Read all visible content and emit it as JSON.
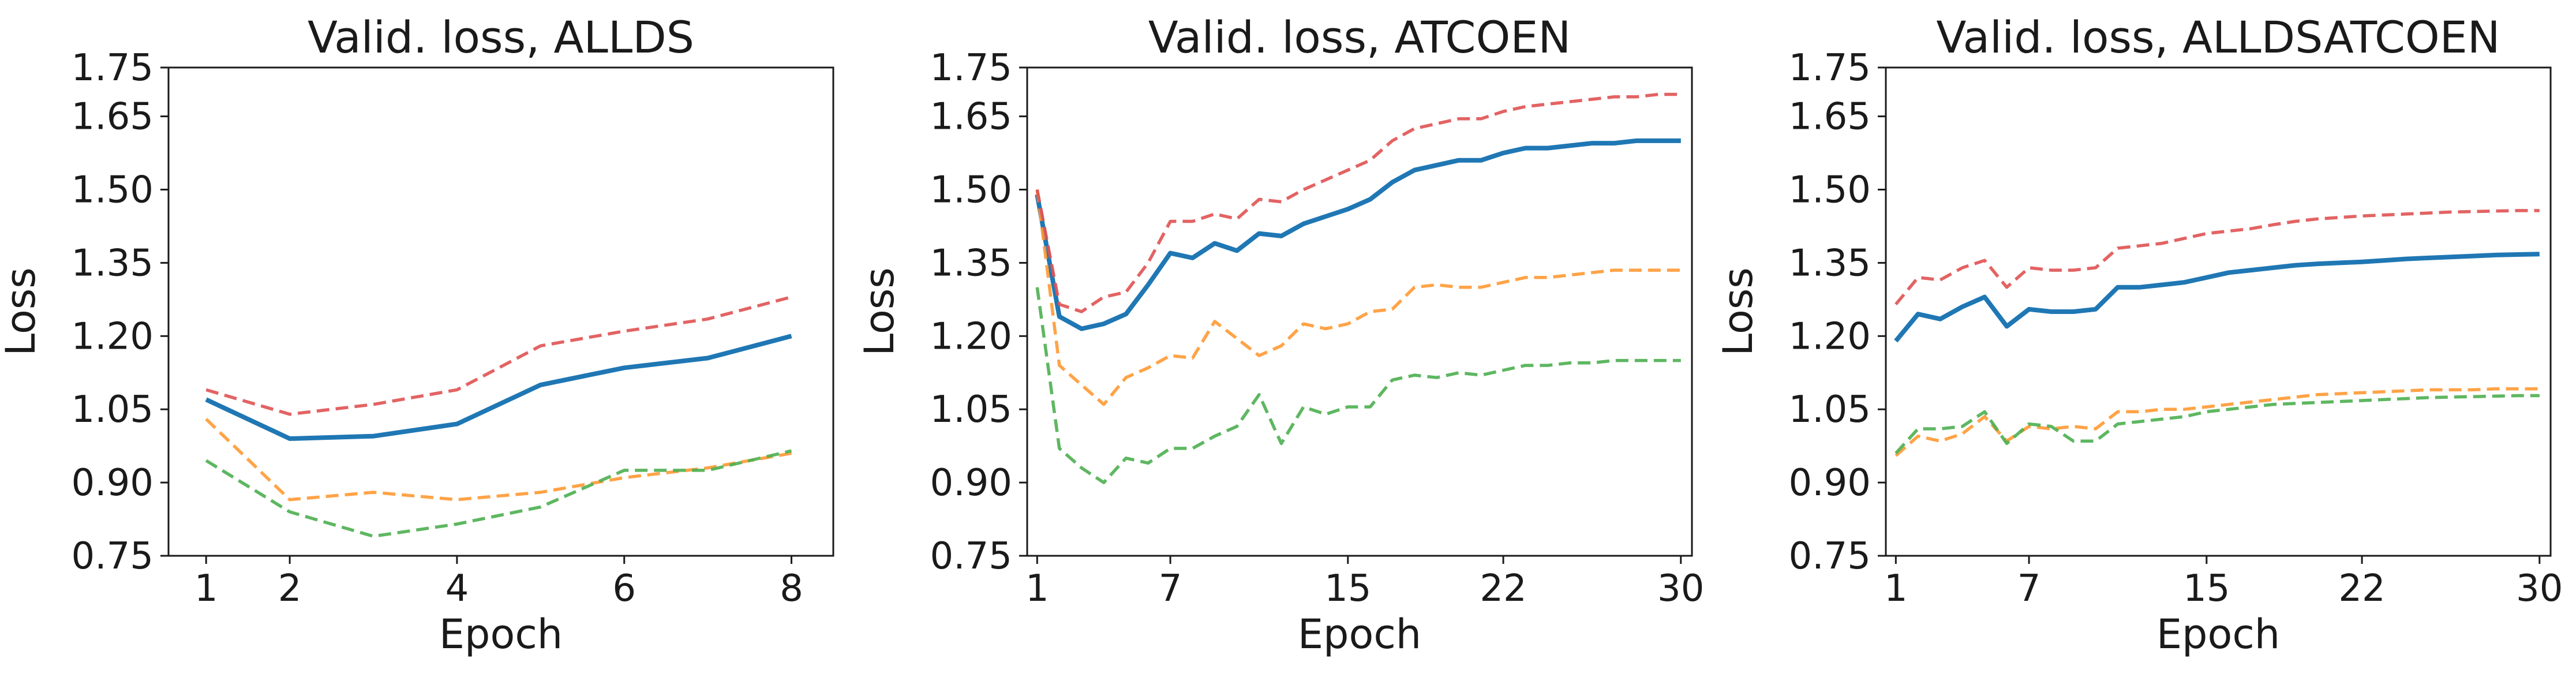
{
  "colors": {
    "blue": "#1f77b4",
    "orange": "#ff9933",
    "green": "#4caf50",
    "red": "#e05252"
  },
  "chart_data": [
    {
      "type": "line",
      "title": "Valid. loss, ALLDS",
      "xlabel": "Epoch",
      "ylabel": "Loss",
      "xlim": [
        0.55,
        8.5
      ],
      "ylim": [
        0.75,
        1.75
      ],
      "xticks": [
        1,
        2,
        4,
        6,
        8
      ],
      "yticks": [
        0.75,
        0.9,
        1.05,
        1.2,
        1.35,
        1.5,
        1.65,
        1.75
      ],
      "ytick_labels": [
        "0.75",
        "0.90",
        "1.05",
        "1.20",
        "1.35",
        "1.50",
        "1.65",
        "1.75"
      ],
      "grid": false,
      "x": [
        1,
        2,
        3,
        4,
        5,
        6,
        7,
        8
      ],
      "series": [
        {
          "color": "blue",
          "style": "solid",
          "values": [
            1.07,
            0.99,
            0.995,
            1.02,
            1.1,
            1.135,
            1.155,
            1.2
          ]
        },
        {
          "color": "orange",
          "style": "dashed",
          "values": [
            1.03,
            0.865,
            0.88,
            0.865,
            0.88,
            0.91,
            0.93,
            0.96
          ]
        },
        {
          "color": "green",
          "style": "dashed",
          "values": [
            0.945,
            0.84,
            0.79,
            0.815,
            0.85,
            0.925,
            0.925,
            0.965
          ]
        },
        {
          "color": "red",
          "style": "dashed",
          "values": [
            1.09,
            1.04,
            1.06,
            1.09,
            1.18,
            1.21,
            1.235,
            1.28
          ]
        }
      ]
    },
    {
      "type": "line",
      "title": "Valid. loss, ATCOEN",
      "xlabel": "Epoch",
      "ylabel": "Loss",
      "xlim": [
        0.55,
        30.5
      ],
      "ylim": [
        0.75,
        1.75
      ],
      "xticks": [
        1,
        7,
        15,
        22,
        30
      ],
      "yticks": [
        0.75,
        0.9,
        1.05,
        1.2,
        1.35,
        1.5,
        1.65,
        1.75
      ],
      "ytick_labels": [
        "0.75",
        "0.90",
        "1.05",
        "1.20",
        "1.35",
        "1.50",
        "1.65",
        "1.75"
      ],
      "grid": false,
      "x": [
        1,
        2,
        3,
        4,
        5,
        6,
        7,
        8,
        9,
        10,
        11,
        12,
        13,
        14,
        15,
        16,
        17,
        18,
        19,
        20,
        21,
        22,
        23,
        24,
        25,
        26,
        27,
        28,
        29,
        30
      ],
      "series": [
        {
          "color": "blue",
          "style": "solid",
          "values": [
            1.49,
            1.24,
            1.215,
            1.225,
            1.245,
            1.305,
            1.37,
            1.36,
            1.39,
            1.375,
            1.41,
            1.405,
            1.43,
            1.445,
            1.46,
            1.48,
            1.515,
            1.54,
            1.55,
            1.56,
            1.56,
            1.575,
            1.585,
            1.585,
            1.59,
            1.595,
            1.595,
            1.6,
            1.6,
            1.6
          ]
        },
        {
          "color": "orange",
          "style": "dashed",
          "values": [
            1.5,
            1.14,
            1.1,
            1.06,
            1.115,
            1.135,
            1.16,
            1.155,
            1.23,
            1.195,
            1.16,
            1.18,
            1.225,
            1.215,
            1.225,
            1.25,
            1.255,
            1.3,
            1.305,
            1.3,
            1.3,
            1.31,
            1.32,
            1.32,
            1.325,
            1.33,
            1.335,
            1.335,
            1.335,
            1.335
          ]
        },
        {
          "color": "green",
          "style": "dashed",
          "values": [
            1.3,
            0.97,
            0.93,
            0.9,
            0.95,
            0.94,
            0.97,
            0.97,
            0.995,
            1.015,
            1.08,
            0.98,
            1.055,
            1.04,
            1.055,
            1.055,
            1.11,
            1.12,
            1.115,
            1.125,
            1.12,
            1.13,
            1.14,
            1.14,
            1.145,
            1.145,
            1.15,
            1.15,
            1.15,
            1.15
          ]
        },
        {
          "color": "red",
          "style": "dashed",
          "values": [
            1.5,
            1.265,
            1.25,
            1.28,
            1.29,
            1.35,
            1.435,
            1.435,
            1.45,
            1.44,
            1.48,
            1.475,
            1.5,
            1.52,
            1.54,
            1.56,
            1.6,
            1.625,
            1.635,
            1.645,
            1.645,
            1.66,
            1.67,
            1.675,
            1.68,
            1.685,
            1.69,
            1.69,
            1.695,
            1.695
          ]
        }
      ]
    },
    {
      "type": "line",
      "title": "Valid. loss, ALLDSATCOEN",
      "xlabel": "Epoch",
      "ylabel": "Loss",
      "xlim": [
        0.55,
        30.5
      ],
      "ylim": [
        0.75,
        1.75
      ],
      "xticks": [
        1,
        7,
        15,
        22,
        30
      ],
      "yticks": [
        0.75,
        0.9,
        1.05,
        1.2,
        1.35,
        1.5,
        1.65,
        1.75
      ],
      "ytick_labels": [
        "0.75",
        "0.90",
        "1.05",
        "1.20",
        "1.35",
        "1.50",
        "1.65",
        "1.75"
      ],
      "grid": false,
      "x": [
        1,
        2,
        3,
        4,
        5,
        6,
        7,
        8,
        9,
        10,
        11,
        12,
        13,
        14,
        15,
        16,
        17,
        18,
        19,
        20,
        21,
        22,
        23,
        24,
        25,
        26,
        27,
        28,
        29,
        30
      ],
      "series": [
        {
          "color": "blue",
          "style": "solid",
          "values": [
            1.19,
            1.245,
            1.235,
            1.26,
            1.28,
            1.22,
            1.255,
            1.25,
            1.25,
            1.255,
            1.3,
            1.3,
            1.305,
            1.31,
            1.32,
            1.33,
            1.335,
            1.34,
            1.345,
            1.348,
            1.35,
            1.352,
            1.355,
            1.358,
            1.36,
            1.362,
            1.364,
            1.366,
            1.367,
            1.368
          ]
        },
        {
          "color": "orange",
          "style": "dashed",
          "values": [
            0.955,
            0.995,
            0.985,
            1.0,
            1.035,
            0.985,
            1.015,
            1.01,
            1.015,
            1.01,
            1.045,
            1.045,
            1.05,
            1.05,
            1.055,
            1.06,
            1.065,
            1.07,
            1.075,
            1.08,
            1.082,
            1.084,
            1.086,
            1.088,
            1.09,
            1.09,
            1.09,
            1.092,
            1.092,
            1.092
          ]
        },
        {
          "color": "green",
          "style": "dashed",
          "values": [
            0.96,
            1.01,
            1.01,
            1.015,
            1.045,
            0.98,
            1.02,
            1.015,
            0.985,
            0.985,
            1.02,
            1.025,
            1.03,
            1.035,
            1.045,
            1.05,
            1.055,
            1.06,
            1.062,
            1.064,
            1.066,
            1.068,
            1.07,
            1.072,
            1.074,
            1.075,
            1.076,
            1.077,
            1.078,
            1.078
          ]
        },
        {
          "color": "red",
          "style": "dashed",
          "values": [
            1.265,
            1.32,
            1.315,
            1.34,
            1.355,
            1.3,
            1.34,
            1.335,
            1.335,
            1.34,
            1.38,
            1.385,
            1.39,
            1.4,
            1.41,
            1.415,
            1.42,
            1.428,
            1.435,
            1.44,
            1.443,
            1.446,
            1.448,
            1.45,
            1.452,
            1.454,
            1.455,
            1.456,
            1.457,
            1.457
          ]
        }
      ]
    }
  ]
}
